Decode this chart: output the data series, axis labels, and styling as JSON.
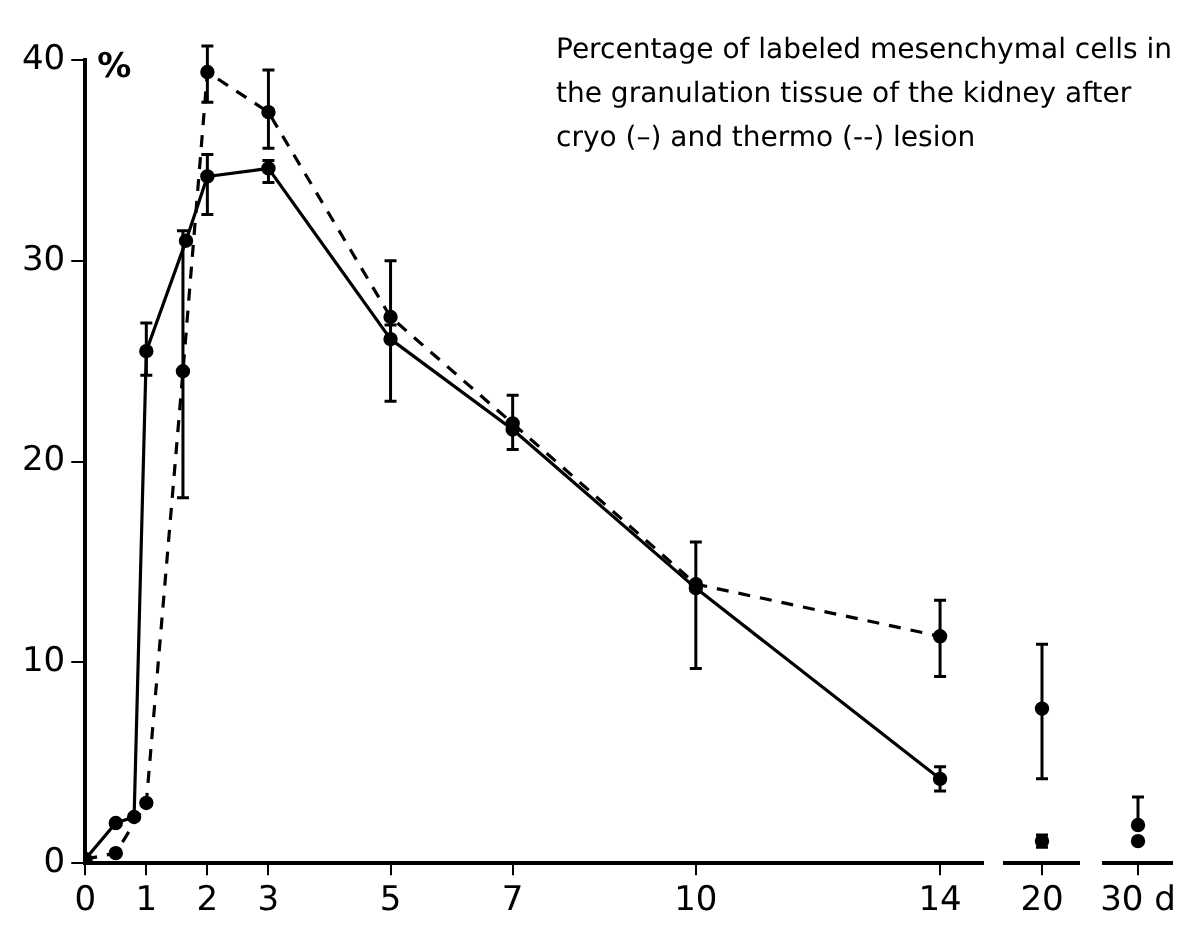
{
  "chart_data": [
    {
      "type": "line",
      "title": "Percentage of labeled mesenchymal cells in the granulation tissue of the kidney after cryo (–) and thermo (--) lesion",
      "ylabel": "%",
      "xlim": [
        0,
        14.7
      ],
      "xticks": [
        0,
        1,
        2,
        3,
        5,
        7,
        10,
        14
      ],
      "ylim": [
        0,
        40
      ],
      "yticks": [
        0,
        10,
        20,
        30,
        40
      ],
      "legend": false,
      "marker": "circle",
      "series": [
        {
          "color": "#000000",
          "line_style": "solid",
          "x": [
            0,
            0.5,
            0.8,
            1,
            1.65,
            2,
            3,
            5,
            7,
            10,
            14
          ],
          "values": [
            0.2,
            2.0,
            2.3,
            25.5,
            31.0,
            34.2,
            34.6,
            26.1,
            21.6,
            13.7,
            4.2
          ],
          "errors": [
            null,
            null,
            null,
            [
              24.3,
              26.9
            ],
            null,
            [
              32.3,
              35.3
            ],
            [
              33.9,
              35.0
            ],
            [
              23.0,
              26.8
            ],
            null,
            null,
            [
              3.6,
              4.8
            ]
          ]
        },
        {
          "color": "#000000",
          "line_style": "dashed",
          "x": [
            0,
            0.5,
            1,
            1.6,
            2,
            3,
            5,
            7,
            10,
            14
          ],
          "values": [
            0.2,
            0.5,
            3.0,
            24.5,
            39.4,
            37.4,
            27.2,
            21.9,
            13.9,
            11.3
          ],
          "errors": [
            null,
            null,
            null,
            [
              18.2,
              31.5
            ],
            [
              37.9,
              40.7
            ],
            [
              35.6,
              39.5
            ],
            [
              27.2,
              30.0
            ],
            [
              20.6,
              23.3
            ],
            [
              9.7,
              16.0
            ],
            [
              9.3,
              13.1
            ]
          ]
        }
      ]
    },
    {
      "type": "line",
      "categories": [
        "20"
      ],
      "ylim": [
        0,
        40
      ],
      "tick_labels": "x",
      "legend": false,
      "marker": "circle",
      "series": [
        {
          "color": "#000000",
          "line_style": "solid",
          "values": [
            1.1
          ],
          "errors": [
            [
              0.8,
              1.4
            ]
          ]
        },
        {
          "color": "#000000",
          "line_style": "dashed",
          "values": [
            7.7
          ],
          "errors": [
            [
              4.2,
              10.9
            ]
          ]
        }
      ]
    },
    {
      "type": "line",
      "categories": [
        "30 d"
      ],
      "ylim": [
        0,
        40
      ],
      "tick_labels": "x",
      "legend": false,
      "marker": "circle",
      "series": [
        {
          "color": "#000000",
          "line_style": "solid",
          "values": [
            1.1
          ]
        },
        {
          "color": "#000000",
          "line_style": "dashed",
          "values": [
            1.9
          ],
          "errors": [
            [
              1.9,
              3.3
            ]
          ]
        }
      ]
    }
  ]
}
